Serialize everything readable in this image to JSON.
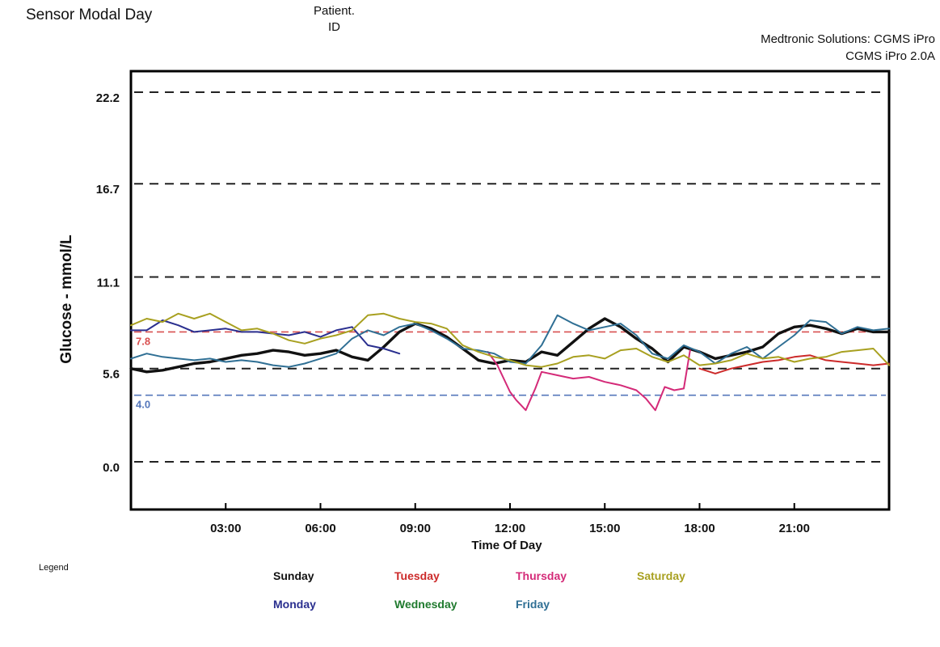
{
  "header": {
    "title": "Sensor Modal Day",
    "patient_label": "Patient.",
    "patient_id_label": "ID",
    "vendor_line1": "Medtronic Solutions: CGMS iPro",
    "vendor_line2": "CGMS iPro 2.0A"
  },
  "colors": {
    "Sunday": "#111111",
    "Monday": "#2a2f8f",
    "Tuesday": "#cc2a2a",
    "Wednesday": "#1f7a2e",
    "Thursday": "#d42a78",
    "Friday": "#2f6f94",
    "Saturday": "#a8a020",
    "upper_limit": "#d95050",
    "lower_limit": "#5577bb"
  },
  "legend": {
    "title": "Legend",
    "items": [
      "Sunday",
      "Tuesday",
      "Thursday",
      "Saturday",
      "Monday",
      "Wednesday",
      "Friday"
    ]
  },
  "chart_data": {
    "type": "line",
    "xlabel": "Time Of Day",
    "ylabel": "Glucose - mmol/L",
    "xlim": [
      0,
      24
    ],
    "ylim": [
      0,
      22.2
    ],
    "x_ticks": [
      3,
      6,
      9,
      12,
      15,
      18,
      21
    ],
    "x_tick_labels": [
      "03:00",
      "06:00",
      "09:00",
      "12:00",
      "15:00",
      "18:00",
      "21:00"
    ],
    "y_ticks": [
      0.0,
      5.6,
      11.1,
      16.7,
      22.2
    ],
    "y_tick_labels": [
      "0.0",
      "5.6",
      "11.1",
      "16.7",
      "22.2"
    ],
    "reference_lines": [
      {
        "value": 7.8,
        "label": "7.8"
      },
      {
        "value": 4.0,
        "label": "4.0"
      }
    ],
    "grid": "horizontal dashed at y ticks",
    "legend_position": "bottom",
    "series": [
      {
        "name": "Sunday",
        "x": [
          0,
          0.5,
          1,
          1.5,
          2,
          2.5,
          3,
          3.5,
          4,
          4.5,
          5,
          5.5,
          6,
          6.5,
          7,
          7.5,
          8,
          8.5,
          9,
          9.5,
          10,
          10.5,
          11,
          11.5,
          12,
          12.5,
          13,
          13.5,
          14,
          14.5,
          15,
          15.5,
          16,
          16.5,
          17,
          17.5,
          18,
          18.5,
          19,
          19.5,
          20,
          20.5,
          21,
          21.5,
          22,
          22.5,
          23,
          23.5,
          24
        ],
        "y": [
          5.6,
          5.4,
          5.5,
          5.7,
          5.9,
          6.0,
          6.2,
          6.4,
          6.5,
          6.7,
          6.6,
          6.4,
          6.5,
          6.7,
          6.3,
          6.1,
          6.9,
          7.8,
          8.3,
          8.0,
          7.5,
          6.8,
          6.1,
          5.9,
          6.1,
          6.0,
          6.6,
          6.4,
          7.2,
          8.0,
          8.6,
          8.1,
          7.4,
          6.8,
          6.0,
          6.9,
          6.6,
          6.2,
          6.4,
          6.6,
          6.9,
          7.7,
          8.1,
          8.2,
          8.0,
          7.7,
          8.0,
          7.8,
          7.8
        ]
      },
      {
        "name": "Monday",
        "x": [
          0,
          0.5,
          1,
          1.5,
          2,
          2.5,
          3,
          3.5,
          4,
          4.5,
          5,
          5.5,
          6,
          6.5,
          7,
          7.5,
          8,
          8.5
        ],
        "y": [
          7.9,
          7.9,
          8.5,
          8.2,
          7.8,
          7.9,
          8.0,
          7.8,
          7.8,
          7.7,
          7.6,
          7.8,
          7.5,
          7.9,
          8.1,
          7.0,
          6.8,
          6.5
        ]
      },
      {
        "name": "Tuesday",
        "x": [
          18,
          18.5,
          19,
          19.5,
          20,
          20.5,
          21,
          21.5,
          22,
          22.5,
          23,
          23.5,
          24
        ],
        "y": [
          5.6,
          5.3,
          5.6,
          5.8,
          6.0,
          6.1,
          6.3,
          6.4,
          6.1,
          6.0,
          5.9,
          5.8,
          5.9
        ]
      },
      {
        "name": "Thursday",
        "x": [
          11.3,
          11.6,
          12.0,
          12.2,
          12.5,
          12.8,
          13.0,
          13.5,
          14.0,
          14.5,
          15.0,
          15.5,
          16.0,
          16.3,
          16.6,
          16.9,
          17.2,
          17.5,
          17.7
        ],
        "y": [
          6.6,
          5.8,
          4.2,
          3.7,
          3.1,
          4.4,
          5.4,
          5.2,
          5.0,
          5.1,
          4.8,
          4.6,
          4.3,
          3.8,
          3.1,
          4.5,
          4.3,
          4.4,
          6.7
        ]
      },
      {
        "name": "Friday",
        "x": [
          0,
          0.5,
          1,
          1.5,
          2,
          2.5,
          3,
          3.5,
          4,
          4.5,
          5,
          5.5,
          6,
          6.5,
          7,
          7.5,
          8,
          8.5,
          9,
          9.5,
          10,
          10.5,
          11,
          11.5,
          12,
          12.5,
          13,
          13.5,
          14,
          14.5,
          15,
          15.5,
          16,
          16.5,
          17,
          17.5,
          18,
          18.5,
          19,
          19.5,
          20,
          20.5,
          21,
          21.5,
          22,
          22.5,
          23,
          23.5,
          24
        ],
        "y": [
          6.2,
          6.5,
          6.3,
          6.2,
          6.1,
          6.2,
          6.0,
          6.1,
          6.0,
          5.8,
          5.7,
          5.9,
          6.2,
          6.5,
          7.4,
          7.9,
          7.6,
          8.1,
          8.3,
          7.9,
          7.4,
          6.8,
          6.7,
          6.5,
          6.0,
          5.9,
          7.0,
          8.8,
          8.3,
          7.9,
          8.1,
          8.3,
          7.6,
          6.5,
          6.2,
          7.0,
          6.6,
          5.9,
          6.5,
          6.9,
          6.2,
          6.9,
          7.6,
          8.5,
          8.4,
          7.7,
          8.1,
          7.9,
          8.0
        ]
      },
      {
        "name": "Saturday",
        "x": [
          0,
          0.5,
          1,
          1.5,
          2,
          2.5,
          3,
          3.5,
          4,
          4.5,
          5,
          5.5,
          6,
          6.5,
          7,
          7.5,
          8,
          8.5,
          9,
          9.5,
          10,
          10.5,
          11,
          11.5,
          12,
          12.5,
          13,
          13.5,
          14,
          14.5,
          15,
          15.5,
          16,
          16.5,
          17,
          17.5,
          18,
          18.5,
          19,
          19.5,
          20,
          20.5,
          21,
          21.5,
          22,
          22.5,
          23,
          23.5,
          24
        ],
        "y": [
          8.2,
          8.6,
          8.4,
          8.9,
          8.6,
          8.9,
          8.4,
          7.9,
          8.0,
          7.7,
          7.3,
          7.1,
          7.4,
          7.6,
          7.9,
          8.8,
          8.9,
          8.6,
          8.4,
          8.3,
          8.0,
          7.0,
          6.6,
          6.3,
          6.1,
          5.8,
          5.7,
          5.9,
          6.3,
          6.4,
          6.2,
          6.7,
          6.8,
          6.3,
          6.0,
          6.4,
          5.8,
          5.9,
          6.1,
          6.5,
          6.2,
          6.3,
          6.0,
          6.2,
          6.3,
          6.6,
          6.7,
          6.8,
          5.8
        ]
      }
    ]
  }
}
